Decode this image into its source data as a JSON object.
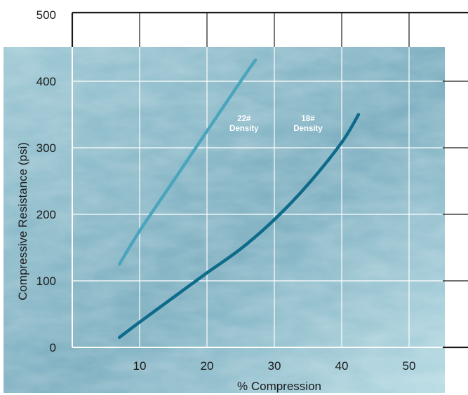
{
  "chart_data": {
    "type": "line",
    "title": "",
    "xlabel": "% Compression",
    "ylabel": "Compressive Resistance (psi)",
    "xlim": [
      0,
      55
    ],
    "ylim": [
      0,
      500
    ],
    "x_ticks": [
      10,
      20,
      30,
      40,
      50
    ],
    "y_ticks": [
      0,
      100,
      200,
      300,
      400,
      500
    ],
    "grid": true,
    "series": [
      {
        "name": "22# Density",
        "color": "#4aa5bd",
        "x": [
          7,
          10,
          15,
          20,
          25,
          27.2
        ],
        "y": [
          125,
          175,
          250,
          325,
          400,
          432
        ]
      },
      {
        "name": "18# Density",
        "color": "#0e6b8a",
        "x": [
          7,
          10,
          15,
          20,
          25,
          30,
          35,
          40,
          42.5
        ],
        "y": [
          15,
          38,
          75,
          112,
          148,
          192,
          245,
          308,
          350
        ]
      }
    ],
    "annotations": [
      {
        "series": 0,
        "lines": [
          "22#",
          "Density"
        ],
        "x": 25.5,
        "y": 340
      },
      {
        "series": 1,
        "lines": [
          "18#",
          "Density"
        ],
        "x": 35,
        "y": 340
      }
    ],
    "background": {
      "colors": [
        "#9fc9d5",
        "#7fb0c1",
        "#b7dbe4"
      ]
    }
  }
}
